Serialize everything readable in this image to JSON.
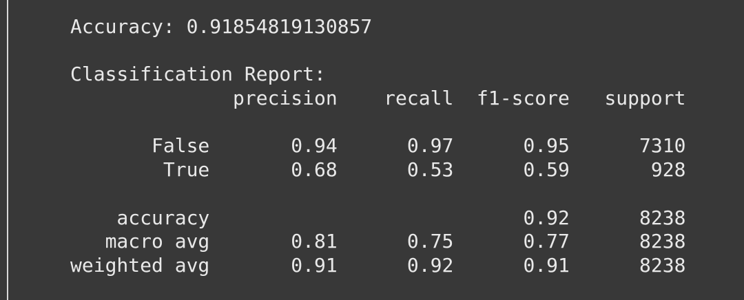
{
  "output": {
    "accuracy_line": "Accuracy: 0.91854819130857",
    "report_title": "Classification Report:",
    "header": "              precision    recall  f1-score   support",
    "rows": [
      "       False       0.94      0.97      0.95      7310",
      "        True       0.68      0.53      0.59       928",
      "    accuracy                           0.92      8238",
      "   macro avg       0.81      0.75      0.77      8238",
      "weighted avg       0.91      0.92      0.91      8238"
    ]
  }
}
